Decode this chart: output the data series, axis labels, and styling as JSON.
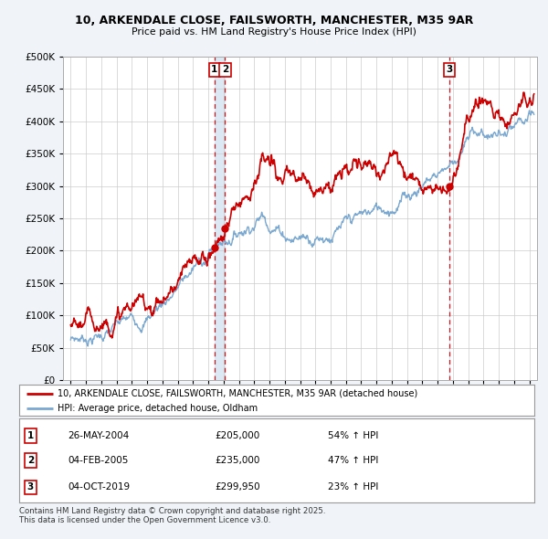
{
  "title_line1": "10, ARKENDALE CLOSE, FAILSWORTH, MANCHESTER, M35 9AR",
  "title_line2": "Price paid vs. HM Land Registry's House Price Index (HPI)",
  "ytick_values": [
    0,
    50000,
    100000,
    150000,
    200000,
    250000,
    300000,
    350000,
    400000,
    450000,
    500000
  ],
  "xlim": [
    1994.5,
    2025.5
  ],
  "ylim": [
    0,
    500000
  ],
  "property_color": "#cc0000",
  "hpi_color": "#7aa8d0",
  "vline_color": "#cc0000",
  "shade_color": "#dde8f5",
  "legend_property": "10, ARKENDALE CLOSE, FAILSWORTH, MANCHESTER, M35 9AR (detached house)",
  "legend_hpi": "HPI: Average price, detached house, Oldham",
  "sales": [
    {
      "label": "1",
      "date": "26-MAY-2004",
      "price": 205000,
      "pct": "54%",
      "direction": "↑",
      "year": 2004.4
    },
    {
      "label": "2",
      "date": "04-FEB-2005",
      "price": 235000,
      "pct": "47%",
      "direction": "↑",
      "year": 2005.1
    },
    {
      "label": "3",
      "date": "04-OCT-2019",
      "price": 299950,
      "pct": "23%",
      "direction": "↑",
      "year": 2019.75
    }
  ],
  "footer": "Contains HM Land Registry data © Crown copyright and database right 2025.\nThis data is licensed under the Open Government Licence v3.0.",
  "background_color": "#f0f4f8",
  "plot_bg_color": "#ffffff",
  "grid_color": "#cccccc"
}
